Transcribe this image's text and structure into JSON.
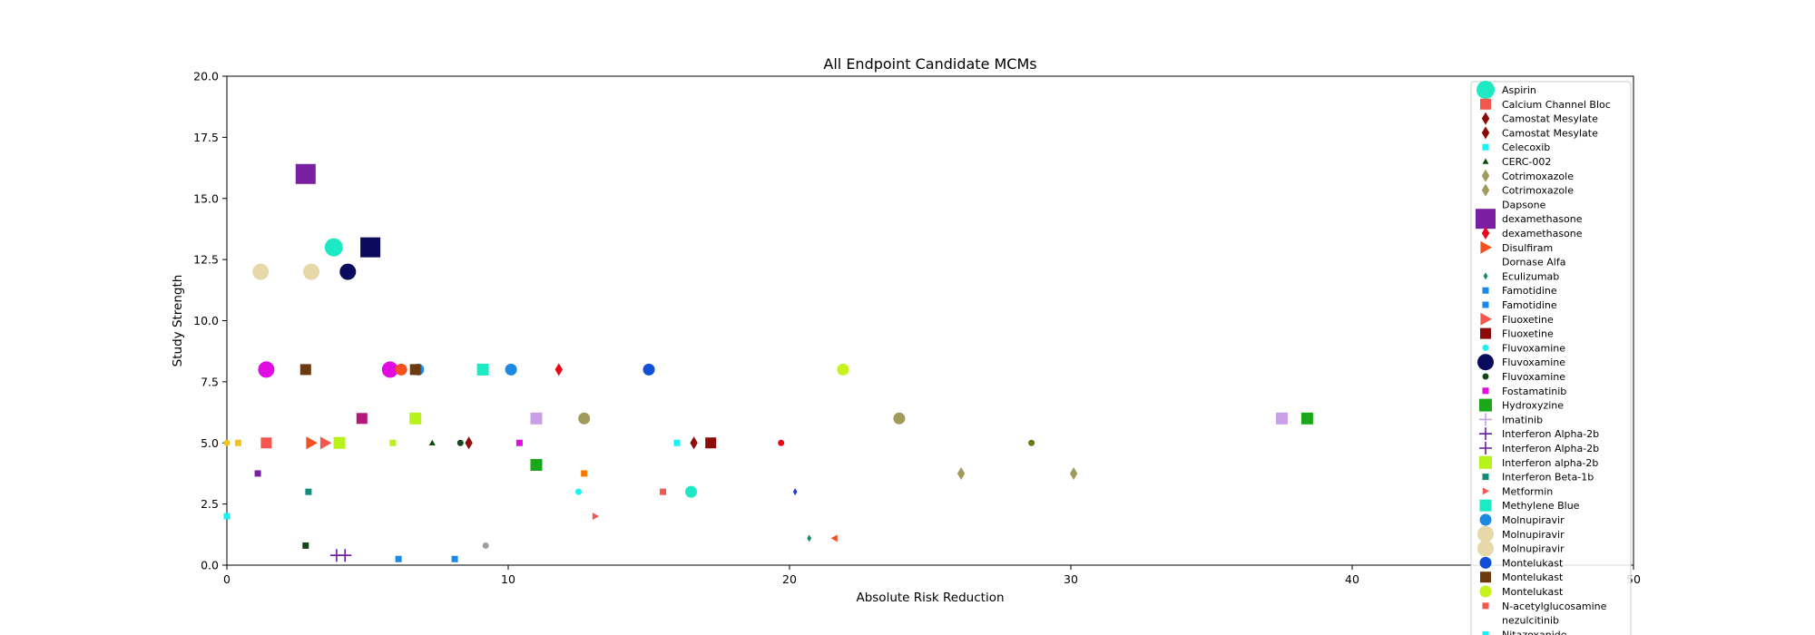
{
  "chart_data": {
    "type": "scatter",
    "title": "All Endpoint Candidate MCMs",
    "xlabel": "Absolute Risk Reduction",
    "ylabel": "Study Strength",
    "xlim": [
      0,
      50
    ],
    "ylim": [
      0,
      20
    ],
    "x_ticks": [
      0,
      10,
      20,
      30,
      40,
      50
    ],
    "x_tick_labels": [
      "0",
      "10",
      "20",
      "30",
      "40",
      "50"
    ],
    "y_ticks": [
      0,
      2.5,
      5,
      7.5,
      10,
      12.5,
      15,
      17.5,
      20
    ],
    "y_tick_labels": [
      "0.0",
      "2.5",
      "5.0",
      "7.5",
      "10.0",
      "12.5",
      "15.0",
      "17.5",
      "20.0"
    ],
    "grid": false,
    "legend_position": "right",
    "legend": [
      {
        "label": "Aspirin",
        "marker": "circle",
        "color": "#1de9c4",
        "size": 10
      },
      {
        "label": "Calcium Channel Bloc",
        "marker": "square",
        "color": "#f4574e",
        "size": 6
      },
      {
        "label": "Camostat Mesylate",
        "marker": "diamond",
        "color": "#8b0a0a",
        "size": 7
      },
      {
        "label": "Camostat Mesylate",
        "marker": "diamond",
        "color": "#8b0a0a",
        "size": 7
      },
      {
        "label": "Celecoxib",
        "marker": "square",
        "color": "#19f2f2",
        "size": 3.5
      },
      {
        "label": "CERC-002",
        "marker": "triangle-up",
        "color": "#0a4d0a",
        "size": 3.5
      },
      {
        "label": "Cotrimoxazole",
        "marker": "diamond",
        "color": "#a09a5d",
        "size": 7
      },
      {
        "label": "Cotrimoxazole",
        "marker": "diamond",
        "color": "#a09a5d",
        "size": 7
      },
      {
        "label": "Dapsone",
        "marker": "none",
        "color": "#ffffff",
        "size": 0
      },
      {
        "label": "dexamethasone",
        "marker": "square",
        "color": "#7b1fa2",
        "size": 11
      },
      {
        "label": "dexamethasone",
        "marker": "diamond",
        "color": "#e8081b",
        "size": 7
      },
      {
        "label": "Disulfiram",
        "marker": "triangle-right",
        "color": "#f4511e",
        "size": 7
      },
      {
        "label": "Dornase Alfa",
        "marker": "none",
        "color": "#ffffff",
        "size": 0
      },
      {
        "label": "Eculizumab",
        "marker": "diamond",
        "color": "#0e8f66",
        "size": 4
      },
      {
        "label": "Famotidine",
        "marker": "square",
        "color": "#1e88e5",
        "size": 3.5
      },
      {
        "label": "Famotidine",
        "marker": "square",
        "color": "#1e88e5",
        "size": 3.5
      },
      {
        "label": "Fluoxetine",
        "marker": "triangle-right",
        "color": "#f4574e",
        "size": 7
      },
      {
        "label": "Fluoxetine",
        "marker": "square",
        "color": "#8b0a0a",
        "size": 6
      },
      {
        "label": "Fluvoxamine",
        "marker": "circle",
        "color": "#19f2f2",
        "size": 3.5
      },
      {
        "label": "Fluvoxamine",
        "marker": "circle",
        "color": "#0b0b5e",
        "size": 9
      },
      {
        "label": "Fluvoxamine",
        "marker": "circle",
        "color": "#14471a",
        "size": 3.5
      },
      {
        "label": "Fostamatinib",
        "marker": "square",
        "color": "#e10ce1",
        "size": 3.5
      },
      {
        "label": "Hydroxyzine",
        "marker": "square",
        "color": "#1aa81a",
        "size": 7
      },
      {
        "label": "Imatinib",
        "marker": "plus",
        "color": "#c9a0e8",
        "size": 7
      },
      {
        "label": "Interferon Alpha-2b",
        "marker": "plus",
        "color": "#6a1b9a",
        "size": 7
      },
      {
        "label": "Interferon Alpha-2b",
        "marker": "plus",
        "color": "#6a1b9a",
        "size": 7
      },
      {
        "label": "Interferon alpha-2b",
        "marker": "square",
        "color": "#b8f21d",
        "size": 7
      },
      {
        "label": "Interferon Beta-1b",
        "marker": "square",
        "color": "#138a7a",
        "size": 3.5
      },
      {
        "label": "Metformin",
        "marker": "triangle-right",
        "color": "#f4574e",
        "size": 4
      },
      {
        "label": "Methylene Blue",
        "marker": "square",
        "color": "#1de9c4",
        "size": 6.5
      },
      {
        "label": "Molnupiravir",
        "marker": "circle",
        "color": "#1e88e5",
        "size": 6.5
      },
      {
        "label": "Molnupiravir",
        "marker": "circle",
        "color": "#e6d8a8",
        "size": 9
      },
      {
        "label": "Molnupiravir",
        "marker": "circle",
        "color": "#e6d8a8",
        "size": 9
      },
      {
        "label": "Montelukast",
        "marker": "circle",
        "color": "#1150d6",
        "size": 6.5
      },
      {
        "label": "Montelukast",
        "marker": "square",
        "color": "#6b3a0e",
        "size": 6
      },
      {
        "label": "Montelukast",
        "marker": "circle",
        "color": "#c6f21d",
        "size": 6.5
      },
      {
        "label": "N-acetylglucosamine",
        "marker": "square",
        "color": "#f4574e",
        "size": 3.5
      },
      {
        "label": "nezulcitinib",
        "marker": "none",
        "color": "#ffffff",
        "size": 0
      },
      {
        "label": "Nitazoxanide",
        "marker": "square",
        "color": "#19f2f2",
        "size": 3.5
      },
      {
        "label": "",
        "marker": "square",
        "color": "#0b0b5e",
        "size": 11
      }
    ],
    "points": [
      {
        "x": 2.8,
        "y": 16.0,
        "marker": "square",
        "color": "#7b1fa2",
        "size": 11
      },
      {
        "x": 3.8,
        "y": 13.0,
        "marker": "circle",
        "color": "#1de9c4",
        "size": 10
      },
      {
        "x": 5.1,
        "y": 13.0,
        "marker": "square",
        "color": "#0b0b5e",
        "size": 11
      },
      {
        "x": 1.2,
        "y": 12.0,
        "marker": "circle",
        "color": "#e6d8a8",
        "size": 9
      },
      {
        "x": 3.0,
        "y": 12.0,
        "marker": "circle",
        "color": "#e6d8a8",
        "size": 9
      },
      {
        "x": 4.3,
        "y": 12.0,
        "marker": "circle",
        "color": "#0b0b5e",
        "size": 9
      },
      {
        "x": 1.4,
        "y": 8.0,
        "marker": "circle",
        "color": "#e10ce1",
        "size": 9
      },
      {
        "x": 2.8,
        "y": 8.0,
        "marker": "square",
        "color": "#6b3a0e",
        "size": 6
      },
      {
        "x": 5.8,
        "y": 8.0,
        "marker": "circle",
        "color": "#e10ce1",
        "size": 9
      },
      {
        "x": 6.2,
        "y": 8.0,
        "marker": "circle",
        "color": "#f4511e",
        "size": 6.5
      },
      {
        "x": 6.8,
        "y": 8.0,
        "marker": "circle",
        "color": "#1e88e5",
        "size": 6.5
      },
      {
        "x": 6.7,
        "y": 8.0,
        "marker": "square",
        "color": "#6b3a0e",
        "size": 6
      },
      {
        "x": 9.1,
        "y": 8.0,
        "marker": "square",
        "color": "#1de9c4",
        "size": 6.5
      },
      {
        "x": 10.1,
        "y": 8.0,
        "marker": "circle",
        "color": "#1e88e5",
        "size": 6.5
      },
      {
        "x": 11.8,
        "y": 8.0,
        "marker": "diamond",
        "color": "#e8081b",
        "size": 7
      },
      {
        "x": 15.0,
        "y": 8.0,
        "marker": "circle",
        "color": "#1150d6",
        "size": 6.5
      },
      {
        "x": 21.9,
        "y": 8.0,
        "marker": "circle",
        "color": "#c6f21d",
        "size": 6.5
      },
      {
        "x": 4.8,
        "y": 6.0,
        "marker": "square",
        "color": "#b5177a",
        "size": 6
      },
      {
        "x": 6.7,
        "y": 6.0,
        "marker": "square",
        "color": "#b8f21d",
        "size": 6.5
      },
      {
        "x": 11.0,
        "y": 6.0,
        "marker": "square",
        "color": "#c9a0e8",
        "size": 6.5
      },
      {
        "x": 12.7,
        "y": 6.0,
        "marker": "circle",
        "color": "#a09a5d",
        "size": 6.5
      },
      {
        "x": 23.9,
        "y": 6.0,
        "marker": "circle",
        "color": "#a09a5d",
        "size": 6.5
      },
      {
        "x": 37.5,
        "y": 6.0,
        "marker": "square",
        "color": "#c9a0e8",
        "size": 6.5
      },
      {
        "x": 38.4,
        "y": 6.0,
        "marker": "square",
        "color": "#1aa81a",
        "size": 6.5
      },
      {
        "x": 0.0,
        "y": 5.0,
        "marker": "circle",
        "color": "#f2c31d",
        "size": 3.5
      },
      {
        "x": 0.4,
        "y": 5.0,
        "marker": "square",
        "color": "#f2c31d",
        "size": 3.5
      },
      {
        "x": 1.4,
        "y": 5.0,
        "marker": "square",
        "color": "#f4574e",
        "size": 6
      },
      {
        "x": 3.0,
        "y": 5.0,
        "marker": "triangle-right",
        "color": "#f4511e",
        "size": 7
      },
      {
        "x": 3.5,
        "y": 5.0,
        "marker": "triangle-right",
        "color": "#f4574e",
        "size": 7
      },
      {
        "x": 4.0,
        "y": 5.0,
        "marker": "square",
        "color": "#b8f21d",
        "size": 6.5
      },
      {
        "x": 5.9,
        "y": 5.0,
        "marker": "square",
        "color": "#b8f21d",
        "size": 3.5
      },
      {
        "x": 7.3,
        "y": 5.0,
        "marker": "triangle-up",
        "color": "#0a4d0a",
        "size": 3.5
      },
      {
        "x": 8.3,
        "y": 5.0,
        "marker": "circle",
        "color": "#14471a",
        "size": 3.5
      },
      {
        "x": 8.6,
        "y": 5.0,
        "marker": "diamond",
        "color": "#8b0a0a",
        "size": 7
      },
      {
        "x": 10.4,
        "y": 5.0,
        "marker": "square",
        "color": "#e10ce1",
        "size": 3.5
      },
      {
        "x": 16.0,
        "y": 5.0,
        "marker": "square",
        "color": "#19f2f2",
        "size": 3.5
      },
      {
        "x": 16.6,
        "y": 5.0,
        "marker": "diamond",
        "color": "#8b0a0a",
        "size": 7
      },
      {
        "x": 17.2,
        "y": 5.0,
        "marker": "square",
        "color": "#8b0a0a",
        "size": 6
      },
      {
        "x": 19.7,
        "y": 5.0,
        "marker": "circle",
        "color": "#e8081b",
        "size": 3.5
      },
      {
        "x": 28.6,
        "y": 5.0,
        "marker": "circle",
        "color": "#6b7a0e",
        "size": 3.5
      },
      {
        "x": 11.0,
        "y": 4.1,
        "marker": "square",
        "color": "#1aa81a",
        "size": 6.5
      },
      {
        "x": 1.1,
        "y": 3.75,
        "marker": "square",
        "color": "#7b1fa2",
        "size": 3.5
      },
      {
        "x": 12.7,
        "y": 3.75,
        "marker": "square",
        "color": "#f57c00",
        "size": 3.5
      },
      {
        "x": 26.1,
        "y": 3.75,
        "marker": "diamond",
        "color": "#a09a5d",
        "size": 7
      },
      {
        "x": 30.1,
        "y": 3.75,
        "marker": "diamond",
        "color": "#a09a5d",
        "size": 7
      },
      {
        "x": 2.9,
        "y": 3.0,
        "marker": "square",
        "color": "#138a7a",
        "size": 3.5
      },
      {
        "x": 12.5,
        "y": 3.0,
        "marker": "circle",
        "color": "#19f2f2",
        "size": 3.5
      },
      {
        "x": 15.5,
        "y": 3.0,
        "marker": "square",
        "color": "#f4574e",
        "size": 3.5
      },
      {
        "x": 16.5,
        "y": 3.0,
        "marker": "circle",
        "color": "#1de9c4",
        "size": 6.5
      },
      {
        "x": 20.2,
        "y": 3.0,
        "marker": "diamond",
        "color": "#1e3fd6",
        "size": 4
      },
      {
        "x": 0.0,
        "y": 2.0,
        "marker": "square",
        "color": "#19f2f2",
        "size": 3.5
      },
      {
        "x": 13.1,
        "y": 2.0,
        "marker": "triangle-right",
        "color": "#f4574e",
        "size": 4
      },
      {
        "x": 20.7,
        "y": 1.1,
        "marker": "diamond",
        "color": "#0e8f66",
        "size": 4
      },
      {
        "x": 21.6,
        "y": 1.1,
        "marker": "triangle-left",
        "color": "#f4511e",
        "size": 4
      },
      {
        "x": 2.8,
        "y": 0.8,
        "marker": "square",
        "color": "#14471a",
        "size": 3.5
      },
      {
        "x": 9.2,
        "y": 0.8,
        "marker": "circle",
        "color": "#9e9e9e",
        "size": 3.5
      },
      {
        "x": 3.9,
        "y": 0.4,
        "marker": "plus",
        "color": "#6a1b9a",
        "size": 7
      },
      {
        "x": 4.2,
        "y": 0.4,
        "marker": "plus",
        "color": "#6a1b9a",
        "size": 7
      },
      {
        "x": 6.1,
        "y": 0.25,
        "marker": "square",
        "color": "#1e88e5",
        "size": 3.5
      },
      {
        "x": 8.1,
        "y": 0.25,
        "marker": "square",
        "color": "#1e88e5",
        "size": 3.5
      }
    ]
  }
}
